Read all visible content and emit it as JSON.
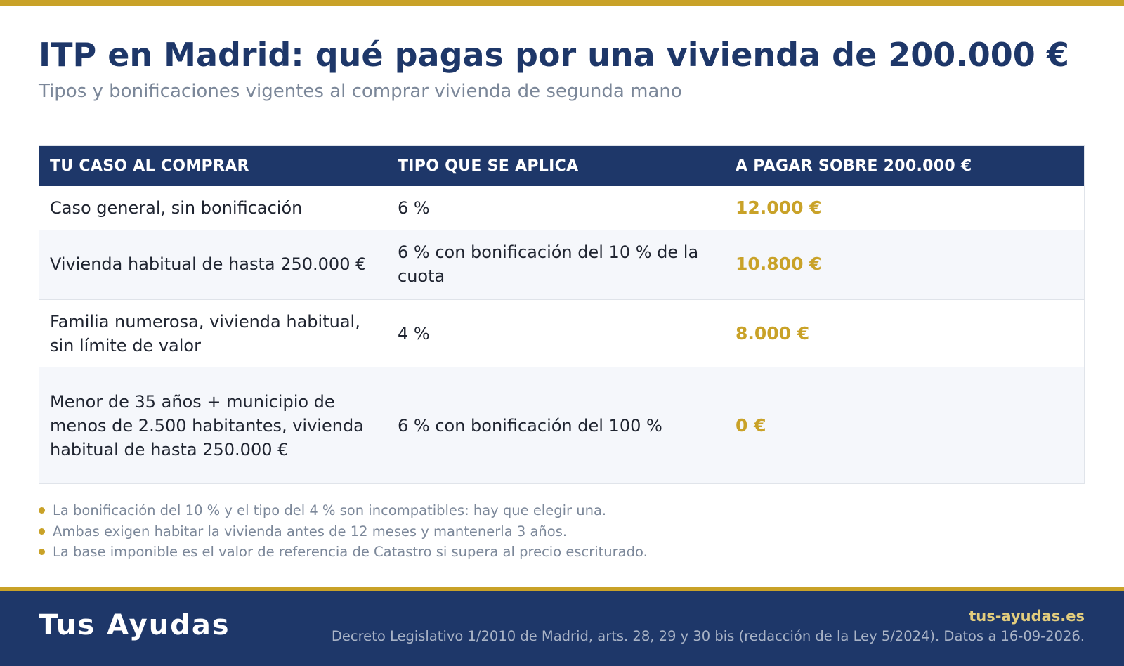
{
  "header": {
    "title": "ITP en Madrid: qué pagas por una vivienda de 200.000 €",
    "subtitle": "Tipos y bonificaciones vigentes al comprar vivienda de segunda mano"
  },
  "table": {
    "columns": [
      "TU CASO AL COMPRAR",
      "TIPO QUE SE APLICA",
      "A PAGAR SOBRE 200.000 €"
    ],
    "rows": [
      {
        "case": "Caso general, sin bonificación",
        "rate": "6 %",
        "amount": "12.000 €"
      },
      {
        "case": "Vivienda habitual de hasta 250.000 €",
        "rate": "6 % con bonificación del 10 % de la cuota",
        "amount": "10.800 €"
      },
      {
        "case": "Familia numerosa, vivienda habitual, sin límite de valor",
        "rate": "4 %",
        "amount": "8.000 €"
      },
      {
        "case": "Menor de 35 años + municipio de menos de 2.500 habitantes, vivienda habitual de hasta 250.000 €",
        "rate": "6 % con bonificación del 100 %",
        "amount": "0 €"
      }
    ]
  },
  "notes": [
    "La bonificación del 10 % y el tipo del 4 % son incompatibles: hay que elegir una.",
    "Ambas exigen habitar la vivienda antes de 12 meses y mantenerla 3 años.",
    "La base imponible es el valor de referencia de Catastro si supera al precio escriturado."
  ],
  "footer": {
    "brand": "Tus Ayudas",
    "site": "tus-ayudas.es",
    "source": "Decreto Legislativo 1/2010 de Madrid, arts. 28, 29 y 30 bis (redacción de la Ley 5/2024). Datos a 16-09-2026."
  },
  "colors": {
    "navy": "#1e3769",
    "gold": "#c9a228",
    "muted": "#7b8799",
    "row_alt": "#f5f7fb"
  }
}
